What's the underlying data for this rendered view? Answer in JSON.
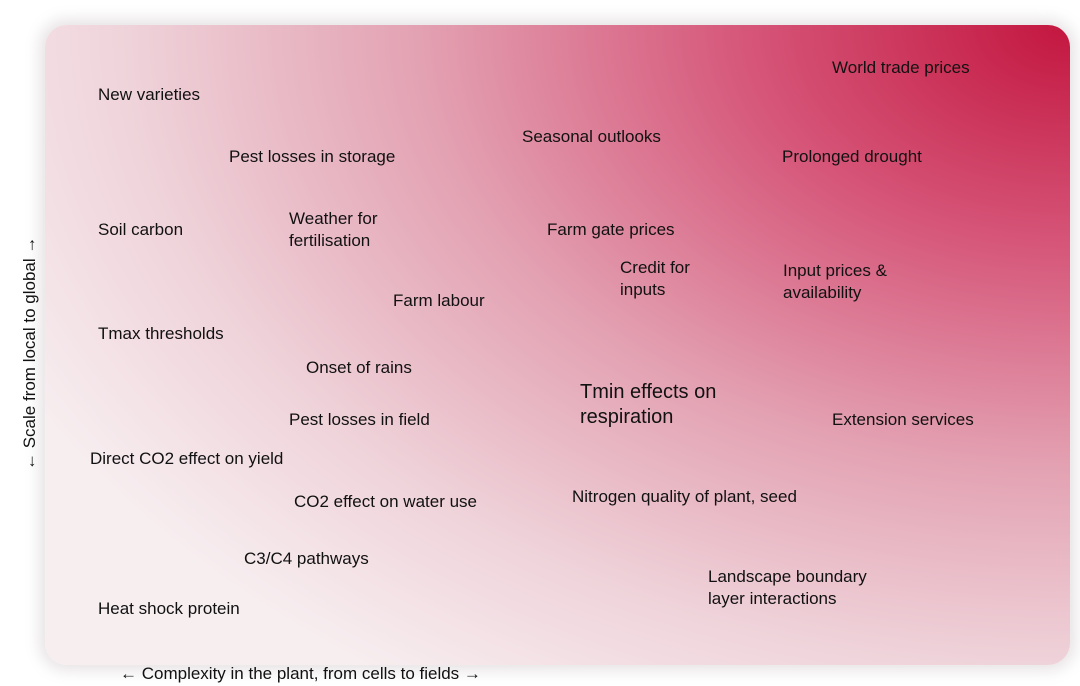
{
  "x_axis_label": "← Complexity in the plant, from cells to fields →",
  "y_axis_label": "← Scale from local to global →",
  "labels": [
    "World trade prices",
    "New varieties",
    "Seasonal outlooks",
    "Pest losses in storage",
    "Prolonged drought",
    "Soil carbon",
    "Weather for fertilisation",
    "Farm gate prices",
    "Credit for inputs",
    "Input prices & availability",
    "Farm labour",
    "Tmax thresholds",
    "Onset of rains",
    "Tmin effects on respiration",
    "Pest losses in field",
    "Extension services",
    "Direct CO2 effect on yield",
    "CO2 effect on water use",
    "Nitrogen quality of plant, seed",
    "C3/C4 pathways",
    "Landscape boundary layer interactions",
    "Heat shock protein"
  ]
}
